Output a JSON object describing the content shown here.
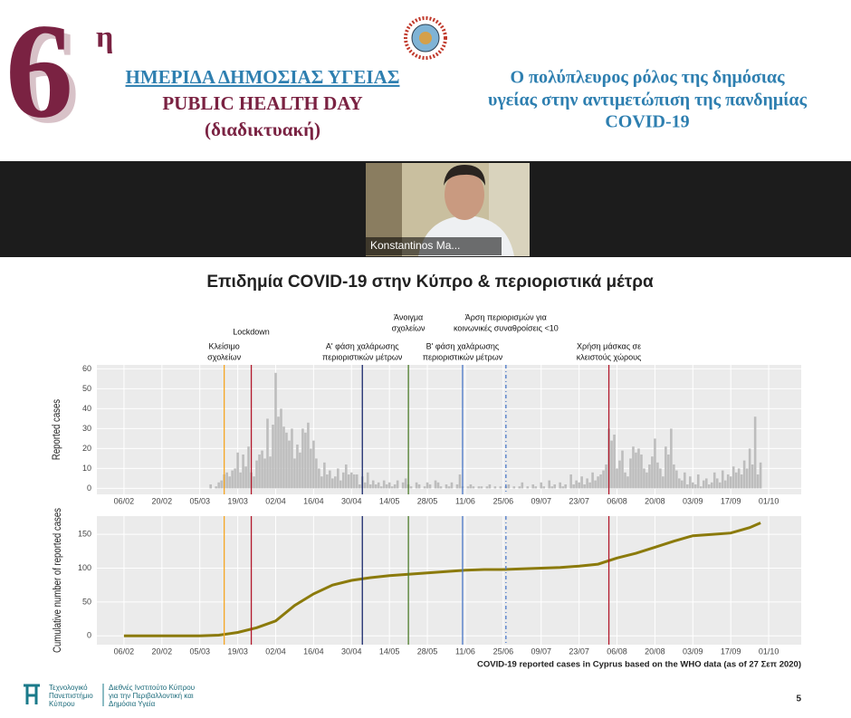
{
  "header": {
    "number": "6",
    "sup": "η",
    "line1": "ΗΜΕΡΙΔΑ ΔΗΜΟΣΙΑΣ ΥΓΕΙΑΣ",
    "line2": "PUBLIC HEALTH DAY",
    "line3": "(διαδικτυακή)",
    "topic": [
      "Ο πολύπλευρος ρόλος της δημόσιας",
      "υγείας στην αντιμετώπιση της πανδημίας",
      "COVID-19"
    ]
  },
  "video": {
    "name": "Konstantinos Ma..."
  },
  "slide": {
    "title": "Επιδημία COVID-19 στην Κύπρο & περιοριστικά μέτρα",
    "page": "5",
    "footer_left": [
      "Τεχνολογικό",
      "Πανεπιστήμιο",
      "Κύπρου"
    ],
    "footer_right": [
      "Διεθνές Ινστιτούτο Κύπρου",
      "για την Περιβαλλοντική και",
      "Δημόσια Υγεία"
    ]
  },
  "chart_data": [
    {
      "type": "bar",
      "ylabel": "Reported cases",
      "color": "#bdbdbd",
      "xlim": [
        "27/01",
        "13/10"
      ],
      "ylim": [
        -3,
        62
      ],
      "yticks": [
        0,
        10,
        20,
        30,
        40,
        50,
        60
      ],
      "xticks": [
        "06/02",
        "20/02",
        "05/03",
        "19/03",
        "02/04",
        "16/04",
        "30/04",
        "14/05",
        "28/05",
        "11/06",
        "25/06",
        "09/07",
        "23/07",
        "06/08",
        "20/08",
        "03/09",
        "17/09",
        "01/10"
      ],
      "events": [
        {
          "x": "14/03",
          "color": "#f5a623",
          "dashed": false,
          "label": [
            "Κλείσιμο",
            "σχολείων"
          ]
        },
        {
          "x": "24/03",
          "color": "#b2182b",
          "dashed": false,
          "label": [
            "Lockdown"
          ]
        },
        {
          "x": "04/05",
          "color": "#1a2a6c",
          "dashed": false,
          "label": [
            "Α' φάση χαλάρωσης",
            "περιοριστικών μέτρων"
          ]
        },
        {
          "x": "21/05",
          "color": "#4d7c2a",
          "dashed": false,
          "label": [
            "Άνοιγμα",
            "σχολείων"
          ]
        },
        {
          "x": "10/06",
          "color": "#4a78c8",
          "dashed": false,
          "label": [
            "Β' φάση χαλάρωσης",
            "περιοριστικών μέτρων"
          ]
        },
        {
          "x": "26/06",
          "color": "#4a78c8",
          "dashed": true,
          "label": [
            "Άρση περιορισμών για",
            "κοινωνικές συναθροίσεις <10"
          ]
        },
        {
          "x": "03/08",
          "color": "#b2182b",
          "dashed": false,
          "label": [
            "Χρήση μάσκας σε",
            "κλειστούς χώρους"
          ]
        }
      ],
      "x": [
        "09/03",
        "10/03",
        "11/03",
        "12/03",
        "13/03",
        "14/03",
        "15/03",
        "16/03",
        "17/03",
        "18/03",
        "19/03",
        "20/03",
        "21/03",
        "22/03",
        "23/03",
        "24/03",
        "25/03",
        "26/03",
        "27/03",
        "28/03",
        "29/03",
        "30/03",
        "31/03",
        "01/04",
        "02/04",
        "03/04",
        "04/04",
        "05/04",
        "06/04",
        "07/04",
        "08/04",
        "09/04",
        "10/04",
        "11/04",
        "12/04",
        "13/04",
        "14/04",
        "15/04",
        "16/04",
        "17/04",
        "18/04",
        "19/04",
        "20/04",
        "21/04",
        "22/04",
        "23/04",
        "24/04",
        "25/04",
        "26/04",
        "27/04",
        "28/04",
        "29/04",
        "30/04",
        "01/05",
        "02/05",
        "03/05",
        "04/05",
        "05/05",
        "06/05",
        "07/05",
        "08/05",
        "09/05",
        "10/05",
        "11/05",
        "12/05",
        "13/05",
        "14/05",
        "15/05",
        "16/05",
        "17/05",
        "18/05",
        "19/05",
        "20/05",
        "21/05",
        "22/05",
        "23/05",
        "24/05",
        "25/05",
        "26/05",
        "27/05",
        "28/05",
        "29/05",
        "30/05",
        "31/05",
        "01/06",
        "02/06",
        "03/06",
        "04/06",
        "05/06",
        "06/06",
        "07/06",
        "08/06",
        "09/06",
        "10/06",
        "11/06",
        "12/06",
        "13/06",
        "14/06",
        "15/06",
        "16/06",
        "17/06",
        "18/06",
        "19/06",
        "20/06",
        "21/06",
        "22/06",
        "23/06",
        "24/06",
        "25/06",
        "26/06",
        "27/06",
        "28/06",
        "29/06",
        "30/06",
        "01/07",
        "02/07",
        "03/07",
        "04/07",
        "05/07",
        "06/07",
        "07/07",
        "08/07",
        "09/07",
        "10/07",
        "11/07",
        "12/07",
        "13/07",
        "14/07",
        "15/07",
        "16/07",
        "17/07",
        "18/07",
        "19/07",
        "20/07",
        "21/07",
        "22/07",
        "23/07",
        "24/07",
        "25/07",
        "26/07",
        "27/07",
        "28/07",
        "29/07",
        "30/07",
        "31/07",
        "01/08",
        "02/08",
        "03/08",
        "04/08",
        "05/08",
        "06/08",
        "07/08",
        "08/08",
        "09/08",
        "10/08",
        "11/08",
        "12/08",
        "13/08",
        "14/08",
        "15/08",
        "16/08",
        "17/08",
        "18/08",
        "19/08",
        "20/08",
        "21/08",
        "22/08",
        "23/08",
        "24/08",
        "25/08",
        "26/08",
        "27/08",
        "28/08",
        "29/08",
        "30/08",
        "31/08",
        "01/09",
        "02/09",
        "03/09",
        "04/09",
        "05/09",
        "06/09",
        "07/09",
        "08/09",
        "09/09",
        "10/09",
        "11/09",
        "12/09",
        "13/09",
        "14/09",
        "15/09",
        "16/09",
        "17/09",
        "18/09",
        "19/09",
        "20/09",
        "21/09",
        "22/09",
        "23/09",
        "24/09",
        "25/09",
        "26/09",
        "27/09",
        "28/09"
      ],
      "values": [
        2,
        0,
        1,
        3,
        4,
        7,
        8,
        6,
        9,
        10,
        18,
        8,
        17,
        11,
        21,
        8,
        6,
        14,
        17,
        19,
        15,
        35,
        16,
        32,
        58,
        36,
        40,
        31,
        28,
        24,
        30,
        15,
        22,
        18,
        30,
        28,
        33,
        20,
        24,
        15,
        10,
        6,
        13,
        7,
        9,
        5,
        6,
        10,
        4,
        8,
        12,
        7,
        8,
        7,
        7,
        2,
        6,
        3,
        8,
        2,
        4,
        2,
        3,
        1,
        4,
        2,
        3,
        1,
        2,
        4,
        0,
        3,
        5,
        2,
        1,
        0,
        3,
        2,
        0,
        1,
        3,
        2,
        0,
        4,
        3,
        1,
        0,
        2,
        1,
        3,
        0,
        2,
        7,
        1,
        0,
        1,
        2,
        1,
        0,
        1,
        1,
        0,
        1,
        2,
        0,
        1,
        0,
        1,
        0,
        1,
        2,
        0,
        1,
        0,
        1,
        3,
        0,
        1,
        0,
        2,
        1,
        0,
        3,
        1,
        0,
        4,
        1,
        2,
        0,
        3,
        1,
        2,
        0,
        7,
        2,
        4,
        3,
        6,
        2,
        5,
        3,
        8,
        4,
        6,
        7,
        9,
        12,
        30,
        24,
        27,
        10,
        14,
        19,
        8,
        6,
        15,
        21,
        18,
        20,
        17,
        10,
        8,
        12,
        16,
        25,
        13,
        10,
        6,
        21,
        17,
        30,
        12,
        9,
        5,
        4,
        8,
        2,
        6,
        3,
        2,
        7,
        1,
        4,
        5,
        2,
        3,
        8,
        5,
        3,
        9,
        4,
        7,
        6,
        11,
        8,
        10,
        7,
        14,
        10,
        20,
        12,
        36,
        7,
        13
      ]
    },
    {
      "type": "line",
      "ylabel": "Cumulative number of reported cases",
      "xlabel": "COVID-19 reported cases in Cyprus based on the WHO data (as of 27 Σεπ 2020)",
      "color": "#8b7a0b",
      "xlim": [
        "27/01",
        "13/10"
      ],
      "ylim": [
        -13,
        177
      ],
      "yticks": [
        0,
        50,
        100,
        150
      ],
      "xticks": [
        "06/02",
        "20/02",
        "05/03",
        "19/03",
        "02/04",
        "16/04",
        "30/04",
        "14/05",
        "28/05",
        "11/06",
        "25/06",
        "09/07",
        "23/07",
        "06/08",
        "20/08",
        "03/09",
        "17/09",
        "01/10"
      ],
      "x": [
        "06/02",
        "20/02",
        "05/03",
        "12/03",
        "19/03",
        "26/03",
        "02/04",
        "09/04",
        "16/04",
        "23/04",
        "30/04",
        "07/05",
        "14/05",
        "21/05",
        "28/05",
        "04/06",
        "11/06",
        "18/06",
        "25/06",
        "02/07",
        "09/07",
        "16/07",
        "23/07",
        "30/07",
        "06/08",
        "13/08",
        "20/08",
        "27/08",
        "03/09",
        "10/09",
        "17/09",
        "24/09",
        "28/09"
      ],
      "values": [
        0,
        0,
        0,
        1,
        5,
        12,
        22,
        45,
        62,
        75,
        82,
        86,
        89,
        91,
        93,
        95,
        97,
        98,
        98,
        99,
        100,
        101,
        103,
        106,
        115,
        122,
        131,
        140,
        148,
        150,
        152,
        160,
        167
      ]
    }
  ]
}
